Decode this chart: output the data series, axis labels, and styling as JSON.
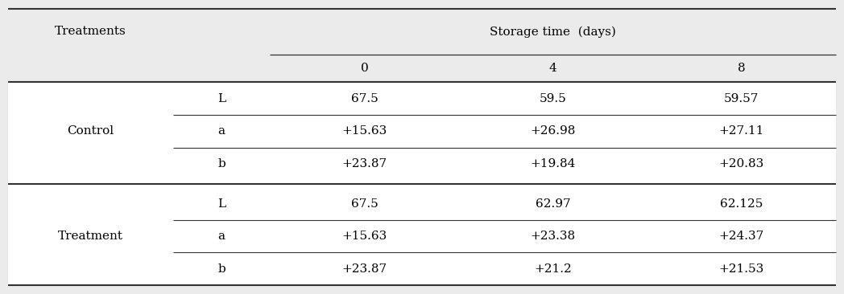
{
  "header_top": "Storage time  (days)",
  "header_col1": "Treatments",
  "header_sub": [
    "",
    "0",
    "4",
    "8"
  ],
  "groups": [
    {
      "name": "Control",
      "rows": [
        {
          "param": "L",
          "values": [
            "67.5",
            "59.5",
            "59.57"
          ]
        },
        {
          "param": "a",
          "values": [
            "+15.63",
            "+26.98",
            "+27.11"
          ]
        },
        {
          "param": "b",
          "values": [
            "+23.87",
            "+19.84",
            "+20.83"
          ]
        }
      ]
    },
    {
      "name": "Treatment",
      "rows": [
        {
          "param": "L",
          "values": [
            "67.5",
            "62.97",
            "62.125"
          ]
        },
        {
          "param": "a",
          "values": [
            "+15.63",
            "+23.38",
            "+24.37"
          ]
        },
        {
          "param": "b",
          "values": [
            "+23.87",
            "+21.2",
            "+21.53"
          ]
        }
      ]
    }
  ],
  "bg_color": "#ebebeb",
  "white_color": "#ffffff",
  "line_color": "#333333",
  "font_size": 11,
  "title_font_size": 11
}
